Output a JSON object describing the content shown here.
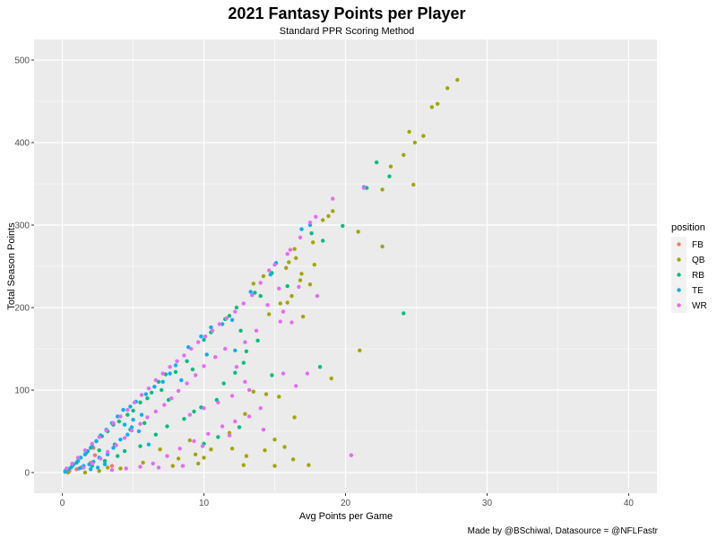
{
  "chart_data": {
    "type": "scatter",
    "title": "2021 Fantasy Points per Player",
    "subtitle": "Standard PPR Scoring Method",
    "xlabel": "Avg Points per Game",
    "ylabel": "Total Season Points",
    "caption": "Made by @BSchiwal, Datasource = @NFLFastr",
    "xlim": [
      -2,
      42
    ],
    "ylim": [
      -25,
      525
    ],
    "x_ticks": [
      0,
      10,
      20,
      30,
      40
    ],
    "y_ticks": [
      0,
      100,
      200,
      300,
      400,
      500
    ],
    "grid": true,
    "legend": {
      "title": "position",
      "placement": "right"
    },
    "series": [
      {
        "name": "FB",
        "color": "#F8766D",
        "points": [
          [
            0.2,
            1
          ],
          [
            0.5,
            2
          ],
          [
            1.0,
            4
          ],
          [
            1.3,
            6
          ],
          [
            2.0,
            12
          ],
          [
            2.3,
            21
          ],
          [
            2.2,
            30
          ],
          [
            3.0,
            14
          ],
          [
            3.5,
            8
          ]
        ]
      },
      {
        "name": "QB",
        "color": "#A3A500",
        "points": [
          [
            27.9,
            476
          ],
          [
            27.2,
            466
          ],
          [
            26.5,
            447
          ],
          [
            26.1,
            443
          ],
          [
            24.5,
            413
          ],
          [
            25.5,
            408
          ],
          [
            24.9,
            400
          ],
          [
            24.1,
            385
          ],
          [
            23.2,
            371
          ],
          [
            22.6,
            343
          ],
          [
            24.8,
            349
          ],
          [
            22.6,
            274
          ],
          [
            20.9,
            292
          ],
          [
            19.1,
            317
          ],
          [
            18.8,
            311
          ],
          [
            18.4,
            306
          ],
          [
            16.4,
            271
          ],
          [
            16.5,
            260
          ],
          [
            16.0,
            255
          ],
          [
            15.8,
            248
          ],
          [
            17.7,
            279
          ],
          [
            17.8,
            252
          ],
          [
            16.9,
            241
          ],
          [
            16.8,
            233
          ],
          [
            17.5,
            228
          ],
          [
            16.2,
            214
          ],
          [
            15.9,
            206
          ],
          [
            15.4,
            205
          ],
          [
            17.0,
            189
          ],
          [
            14.6,
            192
          ],
          [
            13.5,
            229
          ],
          [
            14.2,
            238
          ],
          [
            21.0,
            148
          ],
          [
            19.0,
            114
          ],
          [
            13.5,
            98
          ],
          [
            14.4,
            95
          ],
          [
            15.3,
            92
          ],
          [
            12.9,
            71
          ],
          [
            16.4,
            67
          ],
          [
            11.8,
            48
          ],
          [
            15.0,
            40
          ],
          [
            12.0,
            29
          ],
          [
            9.0,
            39
          ],
          [
            14.3,
            27
          ],
          [
            10.5,
            28
          ],
          [
            13.0,
            20
          ],
          [
            9.6,
            11
          ],
          [
            12.8,
            9
          ],
          [
            15.7,
            31
          ],
          [
            16.3,
            16
          ],
          [
            15.0,
            8
          ],
          [
            17.4,
            9
          ],
          [
            8.2,
            17
          ],
          [
            6.9,
            28
          ],
          [
            5.7,
            12
          ],
          [
            4.1,
            5
          ],
          [
            3.2,
            6
          ],
          [
            2.6,
            2
          ],
          [
            1.6,
            0
          ],
          [
            0.4,
            0
          ],
          [
            7.8,
            8
          ],
          [
            10.0,
            18
          ],
          [
            9.4,
            22
          ]
        ]
      },
      {
        "name": "RB",
        "color": "#00BF7D",
        "points": [
          [
            21.5,
            345
          ],
          [
            22.2,
            376
          ],
          [
            23.1,
            359
          ],
          [
            24.1,
            193
          ],
          [
            19.8,
            299
          ],
          [
            17.6,
            290
          ],
          [
            18.4,
            281
          ],
          [
            15.9,
            226
          ],
          [
            14.8,
            242
          ],
          [
            14.0,
            214
          ],
          [
            13.6,
            218
          ],
          [
            12.3,
            200
          ],
          [
            11.5,
            186
          ],
          [
            10.5,
            170
          ],
          [
            11.8,
            190
          ],
          [
            12.6,
            172
          ],
          [
            10.0,
            161
          ],
          [
            8.8,
            135
          ],
          [
            8.0,
            122
          ],
          [
            7.3,
            119
          ],
          [
            6.8,
            110
          ],
          [
            7.0,
            100
          ],
          [
            6.0,
            90
          ],
          [
            5.5,
            85
          ],
          [
            6.3,
            97
          ],
          [
            5.0,
            75
          ],
          [
            4.6,
            70
          ],
          [
            4.0,
            62
          ],
          [
            3.6,
            58
          ],
          [
            3.2,
            50
          ],
          [
            2.8,
            44
          ],
          [
            2.4,
            38
          ],
          [
            2.0,
            30
          ],
          [
            1.7,
            24
          ],
          [
            1.3,
            18
          ],
          [
            1.0,
            12
          ],
          [
            0.7,
            8
          ],
          [
            0.4,
            4
          ],
          [
            0.2,
            2
          ],
          [
            18.2,
            128
          ],
          [
            14.8,
            118
          ],
          [
            12.8,
            133
          ],
          [
            12.2,
            121
          ],
          [
            11.4,
            108
          ],
          [
            10.9,
            88
          ],
          [
            9.8,
            79
          ],
          [
            9.3,
            74
          ],
          [
            12.5,
            55
          ],
          [
            11.0,
            43
          ],
          [
            10.0,
            35
          ],
          [
            8.6,
            65
          ],
          [
            7.4,
            56
          ],
          [
            6.6,
            46
          ],
          [
            5.5,
            32
          ],
          [
            4.4,
            26
          ],
          [
            3.9,
            20
          ],
          [
            3.0,
            14
          ],
          [
            2.1,
            8
          ],
          [
            1.4,
            6
          ],
          [
            13.0,
            147
          ],
          [
            13.8,
            160
          ],
          [
            9.2,
            125
          ],
          [
            7.5,
            88
          ],
          [
            5.8,
            60
          ],
          [
            4.8,
            52
          ],
          [
            3.7,
            34
          ],
          [
            2.6,
            27
          ]
        ]
      },
      {
        "name": "TE",
        "color": "#00B0F6",
        "points": [
          [
            21.3,
            346
          ],
          [
            17.5,
            300
          ],
          [
            16.9,
            295
          ],
          [
            15.1,
            254
          ],
          [
            14.7,
            240
          ],
          [
            13.3,
            219
          ],
          [
            12.0,
            185
          ],
          [
            11.3,
            180
          ],
          [
            10.5,
            176
          ],
          [
            9.8,
            165
          ],
          [
            8.9,
            152
          ],
          [
            8.0,
            130
          ],
          [
            7.6,
            120
          ],
          [
            7.1,
            110
          ],
          [
            6.5,
            104
          ],
          [
            5.9,
            95
          ],
          [
            5.2,
            86
          ],
          [
            4.8,
            80
          ],
          [
            4.3,
            76
          ],
          [
            3.9,
            68
          ],
          [
            3.5,
            60
          ],
          [
            3.1,
            52
          ],
          [
            2.7,
            45
          ],
          [
            2.4,
            38
          ],
          [
            2.1,
            32
          ],
          [
            1.8,
            26
          ],
          [
            1.6,
            22
          ],
          [
            1.3,
            18
          ],
          [
            1.1,
            14
          ],
          [
            0.8,
            10
          ],
          [
            0.6,
            6
          ],
          [
            0.4,
            4
          ],
          [
            0.2,
            1
          ],
          [
            4.6,
            46
          ],
          [
            4.9,
            55
          ],
          [
            4.1,
            40
          ],
          [
            3.6,
            30
          ],
          [
            3.2,
            22
          ],
          [
            2.6,
            18
          ],
          [
            2.2,
            13
          ],
          [
            1.9,
            10
          ],
          [
            1.5,
            8
          ],
          [
            1.2,
            5
          ],
          [
            5.4,
            50
          ],
          [
            6.1,
            34
          ],
          [
            3.0,
            10
          ],
          [
            2.5,
            6
          ],
          [
            2.0,
            4
          ],
          [
            12.2,
            148
          ],
          [
            10.2,
            143
          ],
          [
            8.4,
            112
          ],
          [
            5.6,
            70
          ],
          [
            5.0,
            64
          ],
          [
            4.4,
            58
          ]
        ]
      },
      {
        "name": "WR",
        "color": "#E76BF3",
        "points": [
          [
            19.1,
            332
          ],
          [
            21.3,
            345
          ],
          [
            17.9,
            310
          ],
          [
            17.5,
            303
          ],
          [
            16.8,
            285
          ],
          [
            16.1,
            270
          ],
          [
            15.9,
            265
          ],
          [
            15.0,
            252
          ],
          [
            14.6,
            245
          ],
          [
            14.0,
            230
          ],
          [
            15.3,
            223
          ],
          [
            13.4,
            215
          ],
          [
            12.8,
            205
          ],
          [
            12.2,
            195
          ],
          [
            11.6,
            187
          ],
          [
            11.1,
            180
          ],
          [
            10.6,
            172
          ],
          [
            10.1,
            165
          ],
          [
            9.6,
            158
          ],
          [
            9.1,
            150
          ],
          [
            8.6,
            142
          ],
          [
            8.1,
            135
          ],
          [
            7.6,
            128
          ],
          [
            7.1,
            120
          ],
          [
            6.6,
            112
          ],
          [
            6.1,
            102
          ],
          [
            5.6,
            94
          ],
          [
            5.1,
            85
          ],
          [
            4.6,
            76
          ],
          [
            4.1,
            68
          ],
          [
            3.6,
            60
          ],
          [
            3.1,
            51
          ],
          [
            2.6,
            43
          ],
          [
            2.1,
            35
          ],
          [
            1.6,
            27
          ],
          [
            1.1,
            18
          ],
          [
            0.7,
            11
          ],
          [
            0.3,
            5
          ],
          [
            17.3,
            120
          ],
          [
            14.5,
            203
          ],
          [
            15.6,
            195
          ],
          [
            16.2,
            182
          ],
          [
            13.7,
            172
          ],
          [
            12.9,
            158
          ],
          [
            11.5,
            150
          ],
          [
            10.8,
            140
          ],
          [
            10.0,
            129
          ],
          [
            9.4,
            118
          ],
          [
            8.8,
            108
          ],
          [
            8.2,
            99
          ],
          [
            7.7,
            90
          ],
          [
            7.2,
            82
          ],
          [
            6.6,
            74
          ],
          [
            6.0,
            67
          ],
          [
            5.5,
            59
          ],
          [
            4.9,
            51
          ],
          [
            4.4,
            42
          ],
          [
            3.8,
            33
          ],
          [
            3.2,
            25
          ],
          [
            2.7,
            17
          ],
          [
            2.1,
            11
          ],
          [
            1.5,
            6
          ],
          [
            20.4,
            21
          ],
          [
            14.0,
            78
          ],
          [
            13.2,
            68
          ],
          [
            12.2,
            62
          ],
          [
            11.3,
            56
          ],
          [
            10.3,
            47
          ],
          [
            9.3,
            38
          ],
          [
            8.3,
            29
          ],
          [
            7.4,
            20
          ],
          [
            6.4,
            11
          ],
          [
            5.5,
            7
          ],
          [
            4.5,
            5
          ],
          [
            3.5,
            3
          ],
          [
            16.5,
            105
          ],
          [
            15.6,
            120
          ],
          [
            13.2,
            100
          ],
          [
            12.0,
            93
          ],
          [
            11.0,
            85
          ],
          [
            10.0,
            78
          ],
          [
            9.0,
            70
          ],
          [
            14.2,
            52
          ],
          [
            11.8,
            45
          ],
          [
            9.9,
            32
          ],
          [
            8.5,
            8
          ],
          [
            6.8,
            6
          ],
          [
            12.3,
            128
          ],
          [
            12.9,
            110
          ],
          [
            18.0,
            214
          ],
          [
            16.7,
            225
          ],
          [
            15.4,
            183
          ]
        ]
      }
    ]
  }
}
